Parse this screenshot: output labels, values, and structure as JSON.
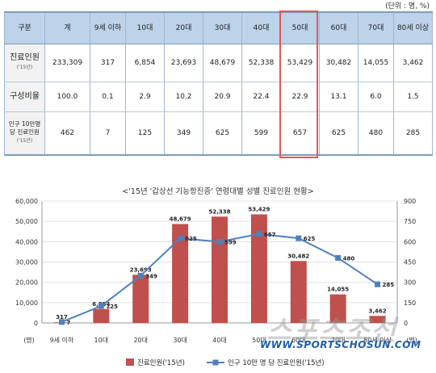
{
  "unit_label": "(단위 : 명, %)",
  "table": {
    "columns": [
      "구분",
      "계",
      "9세 이하",
      "10대",
      "20대",
      "30대",
      "40대",
      "50대",
      "60대",
      "70대",
      "80세 이상"
    ],
    "rows": [
      {
        "label": "진료인원",
        "sub": "('15년)",
        "values": [
          "233,309",
          "317",
          "6,854",
          "23,693",
          "48,679",
          "52,338",
          "53,429",
          "30,482",
          "14,055",
          "3,462"
        ]
      },
      {
        "label": "구성비율",
        "sub": "",
        "values": [
          "100.0",
          "0.1",
          "2.9",
          "10.2",
          "20.9",
          "22.4",
          "22.9",
          "13.1",
          "6.0",
          "1.5"
        ]
      },
      {
        "label": "인구 10만명 당 진료인원",
        "sub": "('15년)",
        "values": [
          "462",
          "7",
          "125",
          "349",
          "625",
          "599",
          "657",
          "625",
          "480",
          "285"
        ]
      }
    ]
  },
  "chart_title": "<'15년 '갑상선 기능항진증' 연령대별 성별 진료인원 현황>",
  "watermark": "WWW.SPORTSCHOSUN.COM",
  "watermark_logo": "스포츠조선",
  "colors": {
    "bar": "#c0504d",
    "line": "#4f81bd",
    "highlight": "#e0595b",
    "header": "#bdd3ea"
  },
  "chart_data": {
    "type": "bar",
    "categories": [
      "9세 이하",
      "10대",
      "20대",
      "30대",
      "40대",
      "50대",
      "60대",
      "70대",
      "80세 이상"
    ],
    "series": [
      {
        "name": "진료인원('15년)",
        "type": "bar",
        "axis": "left",
        "values": [
          317,
          6854,
          23693,
          48679,
          52338,
          53429,
          30482,
          14055,
          3462
        ]
      },
      {
        "name": "인구 10만 명 당 진료인원('15년)",
        "type": "line",
        "axis": "right",
        "values": [
          7,
          125,
          349,
          625,
          599,
          657,
          625,
          480,
          285
        ]
      }
    ],
    "data_labels_bar": [
      "317",
      "6,854",
      "23,693",
      "48,679",
      "52,338",
      "53,429",
      "30,482",
      "14,055",
      "3,462"
    ],
    "data_labels_line": [
      "7",
      "125",
      "349",
      "625",
      "599",
      "657",
      "625",
      "480",
      "285"
    ],
    "ylim": [
      0,
      60000
    ],
    "y2lim": [
      0,
      900
    ],
    "yticks": [
      "0",
      "10,000",
      "20,000",
      "30,000",
      "40,000",
      "50,000",
      "60,000"
    ],
    "y2ticks": [
      "0",
      "150",
      "300",
      "450",
      "600",
      "750",
      "900"
    ],
    "y_unit": "(명)",
    "y2_unit": "(명)",
    "legend_position": "bottom"
  }
}
